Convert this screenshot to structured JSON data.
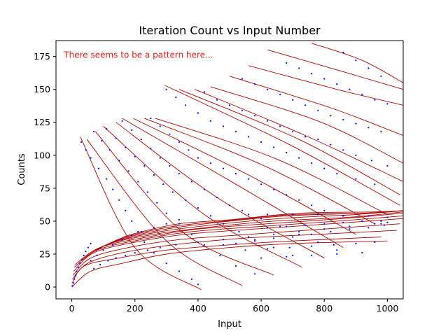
{
  "chart_data": {
    "type": "scatter",
    "title": "Iteration Count vs Input Number",
    "xlabel": "Input",
    "ylabel": "Counts",
    "xlim": [
      -50,
      1050
    ],
    "ylim": [
      -9,
      187
    ],
    "xticks": [
      0,
      200,
      400,
      600,
      800,
      1000
    ],
    "yticks": [
      0,
      25,
      50,
      75,
      100,
      125,
      150,
      175
    ],
    "grid": false,
    "annotation": {
      "text": "There seems to be a pattern here...",
      "x": -25,
      "y": 174,
      "color": "#e41a1c"
    },
    "colors": {
      "curve": "#aa0000",
      "point": "#0000ff"
    },
    "descending_curves": [
      {
        "x": [
          27,
          200,
          410
        ],
        "y": [
          114,
          30,
          -2
        ]
      },
      {
        "x": [
          48,
          300,
          540
        ],
        "y": [
          112,
          35,
          1
        ]
      },
      {
        "x": [
          75,
          350,
          640
        ],
        "y": [
          118,
          42,
          9
        ]
      },
      {
        "x": [
          100,
          420,
          730
        ],
        "y": [
          122,
          55,
          15
        ]
      },
      {
        "x": [
          140,
          460,
          800
        ],
        "y": [
          125,
          68,
          22
        ]
      },
      {
        "x": [
          160,
          520,
          860
        ],
        "y": [
          128,
          78,
          30
        ]
      },
      {
        "x": [
          195,
          560,
          900
        ],
        "y": [
          128,
          85,
          40
        ]
      },
      {
        "x": [
          230,
          610,
          960
        ],
        "y": [
          128,
          92,
          48
        ]
      },
      {
        "x": [
          265,
          650,
          1000
        ],
        "y": [
          128,
          97,
          55
        ]
      },
      {
        "x": [
          295,
          690,
          1040
        ],
        "y": [
          153,
          108,
          62
        ]
      },
      {
        "x": [
          340,
          720,
          1040
        ],
        "y": [
          150,
          112,
          70
        ]
      },
      {
        "x": [
          390,
          740,
          1050
        ],
        "y": [
          150,
          115,
          80
        ]
      },
      {
        "x": [
          440,
          790,
          1050
        ],
        "y": [
          152,
          125,
          94
        ]
      },
      {
        "x": [
          500,
          820,
          1050
        ],
        "y": [
          160,
          136,
          115
        ]
      },
      {
        "x": [
          560,
          840,
          1050
        ],
        "y": [
          168,
          150,
          138
        ]
      },
      {
        "x": [
          620,
          880,
          1050
        ],
        "y": [
          180,
          162,
          150
        ]
      },
      {
        "x": [
          760,
          920,
          1050
        ],
        "y": [
          185,
          172,
          155
        ]
      }
    ],
    "ascending_curves": [
      {
        "x": [
          0,
          60,
          160,
          300,
          500,
          700,
          1000
        ],
        "y": [
          0,
          12,
          18,
          25,
          30,
          33,
          35
        ]
      },
      {
        "x": [
          1,
          40,
          150,
          300,
          500,
          700,
          980
        ],
        "y": [
          3,
          16,
          22,
          28,
          32,
          35,
          38
        ]
      },
      {
        "x": [
          2,
          50,
          160,
          320,
          540,
          780,
          1030
        ],
        "y": [
          6,
          18,
          26,
          32,
          37,
          40,
          43
        ]
      },
      {
        "x": [
          4,
          60,
          180,
          340,
          560,
          800,
          1040
        ],
        "y": [
          9,
          22,
          30,
          36,
          40,
          44,
          48
        ]
      },
      {
        "x": [
          6,
          70,
          200,
          360,
          580,
          820,
          1050
        ],
        "y": [
          12,
          26,
          34,
          40,
          44,
          48,
          52
        ]
      },
      {
        "x": [
          8,
          80,
          220,
          380,
          600,
          840,
          1050
        ],
        "y": [
          15,
          28,
          36,
          42,
          46,
          50,
          54
        ]
      },
      {
        "x": [
          10,
          90,
          240,
          400,
          620,
          860,
          1050
        ],
        "y": [
          17,
          30,
          38,
          44,
          48,
          52,
          56
        ]
      },
      {
        "x": [
          30,
          110,
          260,
          420,
          640,
          880,
          1050
        ],
        "y": [
          20,
          32,
          40,
          45,
          50,
          53,
          57
        ]
      },
      {
        "x": [
          50,
          130,
          280,
          440,
          660,
          900,
          1050
        ],
        "y": [
          24,
          34,
          42,
          47,
          52,
          55,
          58
        ]
      },
      {
        "x": [
          80,
          150,
          300,
          460,
          680,
          920,
          1050
        ],
        "y": [
          28,
          36,
          44,
          49,
          54,
          56,
          58
        ]
      },
      {
        "x": [
          110,
          170,
          320,
          480,
          700,
          940,
          1050
        ],
        "y": [
          32,
          38,
          46,
          50,
          55,
          56,
          58
        ]
      },
      {
        "x": [
          140,
          190,
          340,
          500,
          720,
          960,
          1050
        ],
        "y": [
          35,
          40,
          48,
          51,
          56,
          57,
          58
        ]
      }
    ],
    "points": [
      [
        2,
        1
      ],
      [
        5,
        3
      ],
      [
        8,
        6
      ],
      [
        12,
        9
      ],
      [
        15,
        12
      ],
      [
        20,
        15
      ],
      [
        26,
        18
      ],
      [
        32,
        21
      ],
      [
        38,
        24
      ],
      [
        44,
        27
      ],
      [
        52,
        30
      ],
      [
        60,
        33
      ],
      [
        70,
        14
      ],
      [
        90,
        17
      ],
      [
        115,
        20
      ],
      [
        140,
        22
      ],
      [
        170,
        24
      ],
      [
        200,
        26
      ],
      [
        240,
        28
      ],
      [
        280,
        30
      ],
      [
        330,
        32
      ],
      [
        400,
        34
      ],
      [
        480,
        36
      ],
      [
        560,
        38
      ],
      [
        640,
        40
      ],
      [
        720,
        42
      ],
      [
        800,
        44
      ],
      [
        880,
        46
      ],
      [
        960,
        48
      ],
      [
        1000,
        49
      ],
      [
        60,
        20
      ],
      [
        80,
        24
      ],
      [
        100,
        28
      ],
      [
        130,
        32
      ],
      [
        160,
        36
      ],
      [
        190,
        39
      ],
      [
        220,
        42
      ],
      [
        260,
        45
      ],
      [
        300,
        48
      ],
      [
        340,
        51
      ],
      [
        30,
        110
      ],
      [
        45,
        104
      ],
      [
        60,
        98
      ],
      [
        85,
        90
      ],
      [
        110,
        82
      ],
      [
        130,
        74
      ],
      [
        150,
        66
      ],
      [
        170,
        58
      ],
      [
        190,
        50
      ],
      [
        210,
        42
      ],
      [
        230,
        34
      ],
      [
        260,
        26
      ],
      [
        300,
        18
      ],
      [
        340,
        12
      ],
      [
        380,
        6
      ],
      [
        400,
        2
      ],
      [
        70,
        118
      ],
      [
        95,
        111
      ],
      [
        120,
        104
      ],
      [
        150,
        96
      ],
      [
        180,
        88
      ],
      [
        210,
        80
      ],
      [
        240,
        72
      ],
      [
        270,
        64
      ],
      [
        300,
        56
      ],
      [
        340,
        48
      ],
      [
        380,
        40
      ],
      [
        420,
        32
      ],
      [
        470,
        24
      ],
      [
        520,
        16
      ],
      [
        580,
        10
      ],
      [
        110,
        120
      ],
      [
        140,
        113
      ],
      [
        170,
        106
      ],
      [
        200,
        99
      ],
      [
        230,
        92
      ],
      [
        260,
        85
      ],
      [
        290,
        78
      ],
      [
        320,
        72
      ],
      [
        360,
        66
      ],
      [
        400,
        60
      ],
      [
        440,
        54
      ],
      [
        480,
        48
      ],
      [
        530,
        42
      ],
      [
        580,
        36
      ],
      [
        640,
        30
      ],
      [
        700,
        24
      ],
      [
        160,
        126
      ],
      [
        190,
        119
      ],
      [
        220,
        112
      ],
      [
        250,
        105
      ],
      [
        280,
        98
      ],
      [
        310,
        92
      ],
      [
        340,
        86
      ],
      [
        380,
        80
      ],
      [
        420,
        74
      ],
      [
        460,
        68
      ],
      [
        500,
        62
      ],
      [
        540,
        58
      ],
      [
        600,
        52
      ],
      [
        660,
        46
      ],
      [
        720,
        40
      ],
      [
        780,
        34
      ],
      [
        840,
        28
      ],
      [
        250,
        128
      ],
      [
        280,
        122
      ],
      [
        310,
        116
      ],
      [
        340,
        110
      ],
      [
        370,
        104
      ],
      [
        400,
        98
      ],
      [
        440,
        94
      ],
      [
        480,
        90
      ],
      [
        520,
        86
      ],
      [
        560,
        82
      ],
      [
        600,
        78
      ],
      [
        640,
        74
      ],
      [
        680,
        70
      ],
      [
        720,
        66
      ],
      [
        760,
        62
      ],
      [
        800,
        58
      ],
      [
        860,
        54
      ],
      [
        920,
        50
      ],
      [
        980,
        48
      ],
      [
        300,
        150
      ],
      [
        330,
        144
      ],
      [
        360,
        138
      ],
      [
        400,
        132
      ],
      [
        440,
        126
      ],
      [
        480,
        122
      ],
      [
        520,
        118
      ],
      [
        560,
        114
      ],
      [
        600,
        110
      ],
      [
        640,
        106
      ],
      [
        680,
        102
      ],
      [
        720,
        98
      ],
      [
        760,
        94
      ],
      [
        800,
        90
      ],
      [
        840,
        86
      ],
      [
        900,
        82
      ],
      [
        960,
        78
      ],
      [
        420,
        148
      ],
      [
        460,
        142
      ],
      [
        500,
        138
      ],
      [
        540,
        134
      ],
      [
        580,
        130
      ],
      [
        620,
        126
      ],
      [
        660,
        122
      ],
      [
        700,
        118
      ],
      [
        740,
        114
      ],
      [
        780,
        112
      ],
      [
        820,
        108
      ],
      [
        860,
        104
      ],
      [
        900,
        100
      ],
      [
        950,
        96
      ],
      [
        1000,
        92
      ],
      [
        540,
        158
      ],
      [
        580,
        154
      ],
      [
        620,
        150
      ],
      [
        660,
        146
      ],
      [
        700,
        142
      ],
      [
        740,
        138
      ],
      [
        780,
        134
      ],
      [
        820,
        130
      ],
      [
        860,
        127
      ],
      [
        900,
        124
      ],
      [
        940,
        121
      ],
      [
        980,
        118
      ],
      [
        680,
        170
      ],
      [
        720,
        166
      ],
      [
        760,
        162
      ],
      [
        800,
        158
      ],
      [
        840,
        154
      ],
      [
        880,
        150
      ],
      [
        920,
        146
      ],
      [
        960,
        142
      ],
      [
        1000,
        139
      ],
      [
        860,
        178
      ],
      [
        900,
        172
      ],
      [
        940,
        166
      ],
      [
        980,
        160
      ],
      [
        480,
        32
      ],
      [
        520,
        33
      ],
      [
        580,
        35
      ],
      [
        640,
        37
      ],
      [
        700,
        38
      ],
      [
        760,
        40
      ],
      [
        820,
        42
      ],
      [
        880,
        44
      ],
      [
        940,
        45
      ],
      [
        990,
        47
      ],
      [
        550,
        28
      ],
      [
        620,
        29
      ],
      [
        690,
        30
      ],
      [
        760,
        31
      ],
      [
        830,
        32
      ],
      [
        900,
        33
      ],
      [
        960,
        34
      ],
      [
        600,
        22
      ],
      [
        680,
        23
      ],
      [
        760,
        24
      ],
      [
        840,
        25
      ],
      [
        920,
        26
      ],
      [
        620,
        45
      ],
      [
        680,
        46
      ],
      [
        740,
        47
      ],
      [
        800,
        48
      ],
      [
        860,
        49
      ],
      [
        920,
        50
      ],
      [
        980,
        50
      ],
      [
        560,
        55
      ],
      [
        620,
        55
      ],
      [
        700,
        55
      ],
      [
        780,
        55
      ],
      [
        860,
        54
      ],
      [
        940,
        54
      ],
      [
        1000,
        53
      ]
    ]
  }
}
